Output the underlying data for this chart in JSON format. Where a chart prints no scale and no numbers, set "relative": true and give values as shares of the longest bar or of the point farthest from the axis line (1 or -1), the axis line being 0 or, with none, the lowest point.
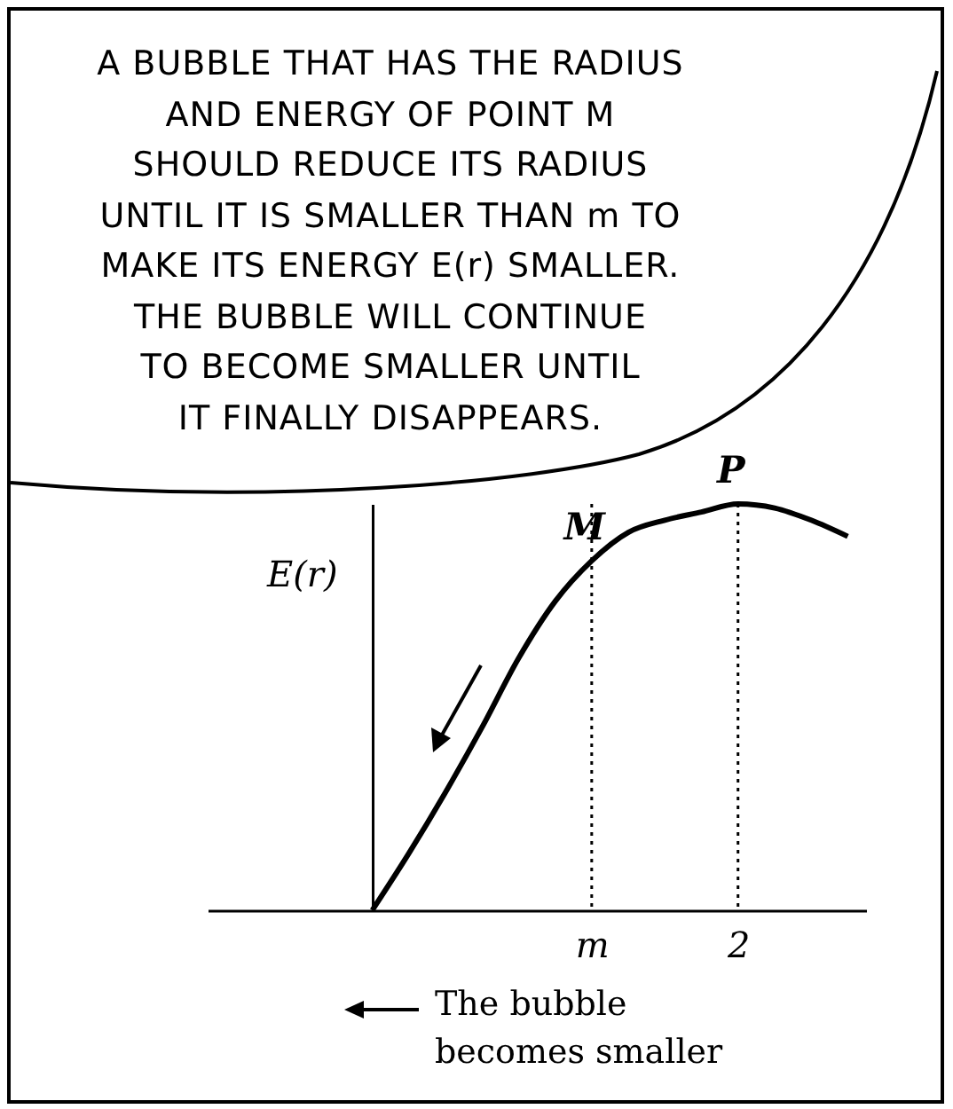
{
  "chart_data": {
    "type": "line",
    "relative": true,
    "ylabel": "E(r)",
    "categories": [
      null,
      null,
      null,
      null,
      null,
      null,
      null,
      null,
      null,
      null,
      "m",
      null,
      null,
      null,
      "2",
      null,
      null,
      null
    ],
    "series": [
      {
        "color": "#000000",
        "values": [
          null,
          null,
          null,
          null,
          0,
          0.14,
          0.29,
          0.45,
          0.62,
          0.76,
          0.86,
          0.93,
          0.96,
          0.98,
          1,
          0.99,
          0.96,
          0.92
        ]
      }
    ],
    "ref_lines": [
      {
        "axis": "x",
        "value": "m",
        "line_style": "dotted"
      },
      {
        "axis": "x",
        "value": "2",
        "line_style": "dotted"
      }
    ],
    "annotations": [
      "A BUBBLE THAT HAS THE RADIUS",
      "AND ENERGY OF POINT M",
      "SHOULD REDUCE ITS RADIUS",
      "UNTIL IT IS SMALLER THAN m TO",
      "MAKE ITS ENERGY E(r) SMALLER.",
      "THE BUBBLE WILL CONTINUE",
      "TO BECOME SMALLER UNTIL",
      "IT FINALLY DISAPPEARS.",
      {
        "text": "M",
        "x": "m",
        "y": 0.86
      },
      {
        "text": "P",
        "x": "2",
        "y": 1
      },
      "The bubble",
      "becomes smaller"
    ]
  }
}
